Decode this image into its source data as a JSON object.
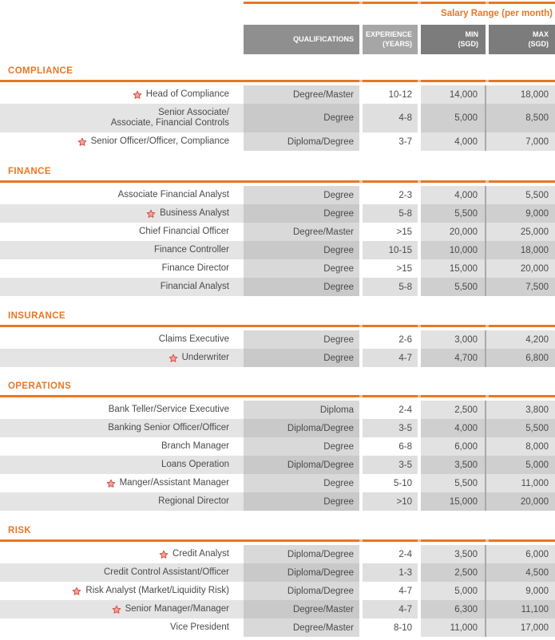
{
  "header": {
    "salary_range_label": "Salary Range (per month)",
    "columns": [
      "QUALIFICATIONS",
      "EXPERIENCE\n(YEARS)",
      "MIN\n(SGD)",
      "MAX\n(SGD)"
    ]
  },
  "accent_color": "#e87725",
  "star_color": "#d34f44",
  "sections": [
    {
      "name": "COMPLIANCE",
      "rows": [
        {
          "title": "Head of Compliance",
          "starred": true,
          "qualifications": "Degree/Master",
          "experience": "10-12",
          "min": "14,000",
          "max": "18,000"
        },
        {
          "title": "Senior Associate/\nAssociate, Financial Controls",
          "starred": false,
          "qualifications": "Degree",
          "experience": "4-8",
          "min": "5,000",
          "max": "8,500"
        },
        {
          "title": "Senior Officer/Officer, Compliance",
          "starred": true,
          "qualifications": "Diploma/Degree",
          "experience": "3-7",
          "min": "4,000",
          "max": "7,000"
        }
      ]
    },
    {
      "name": "FINANCE",
      "rows": [
        {
          "title": "Associate Financial Analyst",
          "starred": false,
          "qualifications": "Degree",
          "experience": "2-3",
          "min": "4,000",
          "max": "5,500"
        },
        {
          "title": "Business Analyst",
          "starred": true,
          "qualifications": "Degree",
          "experience": "5-8",
          "min": "5,500",
          "max": "9,000"
        },
        {
          "title": "Chief Financial Officer",
          "starred": false,
          "qualifications": "Degree/Master",
          "experience": ">15",
          "min": "20,000",
          "max": "25,000"
        },
        {
          "title": "Finance Controller",
          "starred": false,
          "qualifications": "Degree",
          "experience": "10-15",
          "min": "10,000",
          "max": "18,000"
        },
        {
          "title": "Finance Director",
          "starred": false,
          "qualifications": "Degree",
          "experience": ">15",
          "min": "15,000",
          "max": "20,000"
        },
        {
          "title": "Financial Analyst",
          "starred": false,
          "qualifications": "Degree",
          "experience": "5-8",
          "min": "5,500",
          "max": "7,500"
        }
      ]
    },
    {
      "name": "INSURANCE",
      "rows": [
        {
          "title": "Claims Executive",
          "starred": false,
          "qualifications": "Degree",
          "experience": "2-6",
          "min": "3,000",
          "max": "4,200"
        },
        {
          "title": "Underwriter",
          "starred": true,
          "qualifications": "Degree",
          "experience": "4-7",
          "min": "4,700",
          "max": "6,800"
        }
      ]
    },
    {
      "name": "OPERATIONS",
      "rows": [
        {
          "title": "Bank Teller/Service Executive",
          "starred": false,
          "qualifications": "Diploma",
          "experience": "2-4",
          "min": "2,500",
          "max": "3,800"
        },
        {
          "title": "Banking Senior Officer/Officer",
          "starred": false,
          "qualifications": "Diploma/Degree",
          "experience": "3-5",
          "min": "4,000",
          "max": "5,500"
        },
        {
          "title": "Branch Manager",
          "starred": false,
          "qualifications": "Degree",
          "experience": "6-8",
          "min": "6,000",
          "max": "8,000"
        },
        {
          "title": "Loans Operation",
          "starred": false,
          "qualifications": "Diploma/Degree",
          "experience": "3-5",
          "min": "3,500",
          "max": "5,000"
        },
        {
          "title": "Manger/Assistant Manager",
          "starred": true,
          "qualifications": "Degree",
          "experience": "5-10",
          "min": "5,500",
          "max": "11,000"
        },
        {
          "title": "Regional Director",
          "starred": false,
          "qualifications": "Degree",
          "experience": ">10",
          "min": "15,000",
          "max": "20,000"
        }
      ]
    },
    {
      "name": "RISK",
      "rows": [
        {
          "title": "Credit Analyst",
          "starred": true,
          "qualifications": "Diploma/Degree",
          "experience": "2-4",
          "min": "3,500",
          "max": "6,000"
        },
        {
          "title": "Credit Control Assistant/Officer",
          "starred": false,
          "qualifications": "Diploma/Degree",
          "experience": "1-3",
          "min": "2,500",
          "max": "4,500"
        },
        {
          "title": "Risk Analyst (Market/Liquidity Risk)",
          "starred": true,
          "qualifications": "Diploma/Degree",
          "experience": "4-7",
          "min": "5,000",
          "max": "9,000"
        },
        {
          "title": "Senior Manager/Manager",
          "starred": true,
          "qualifications": "Degree/Master",
          "experience": "4-7",
          "min": "6,300",
          "max": "11,100"
        },
        {
          "title": "Vice President",
          "starred": false,
          "qualifications": "Degree/Master",
          "experience": "8-10",
          "min": "11,000",
          "max": "17,000"
        }
      ]
    }
  ]
}
